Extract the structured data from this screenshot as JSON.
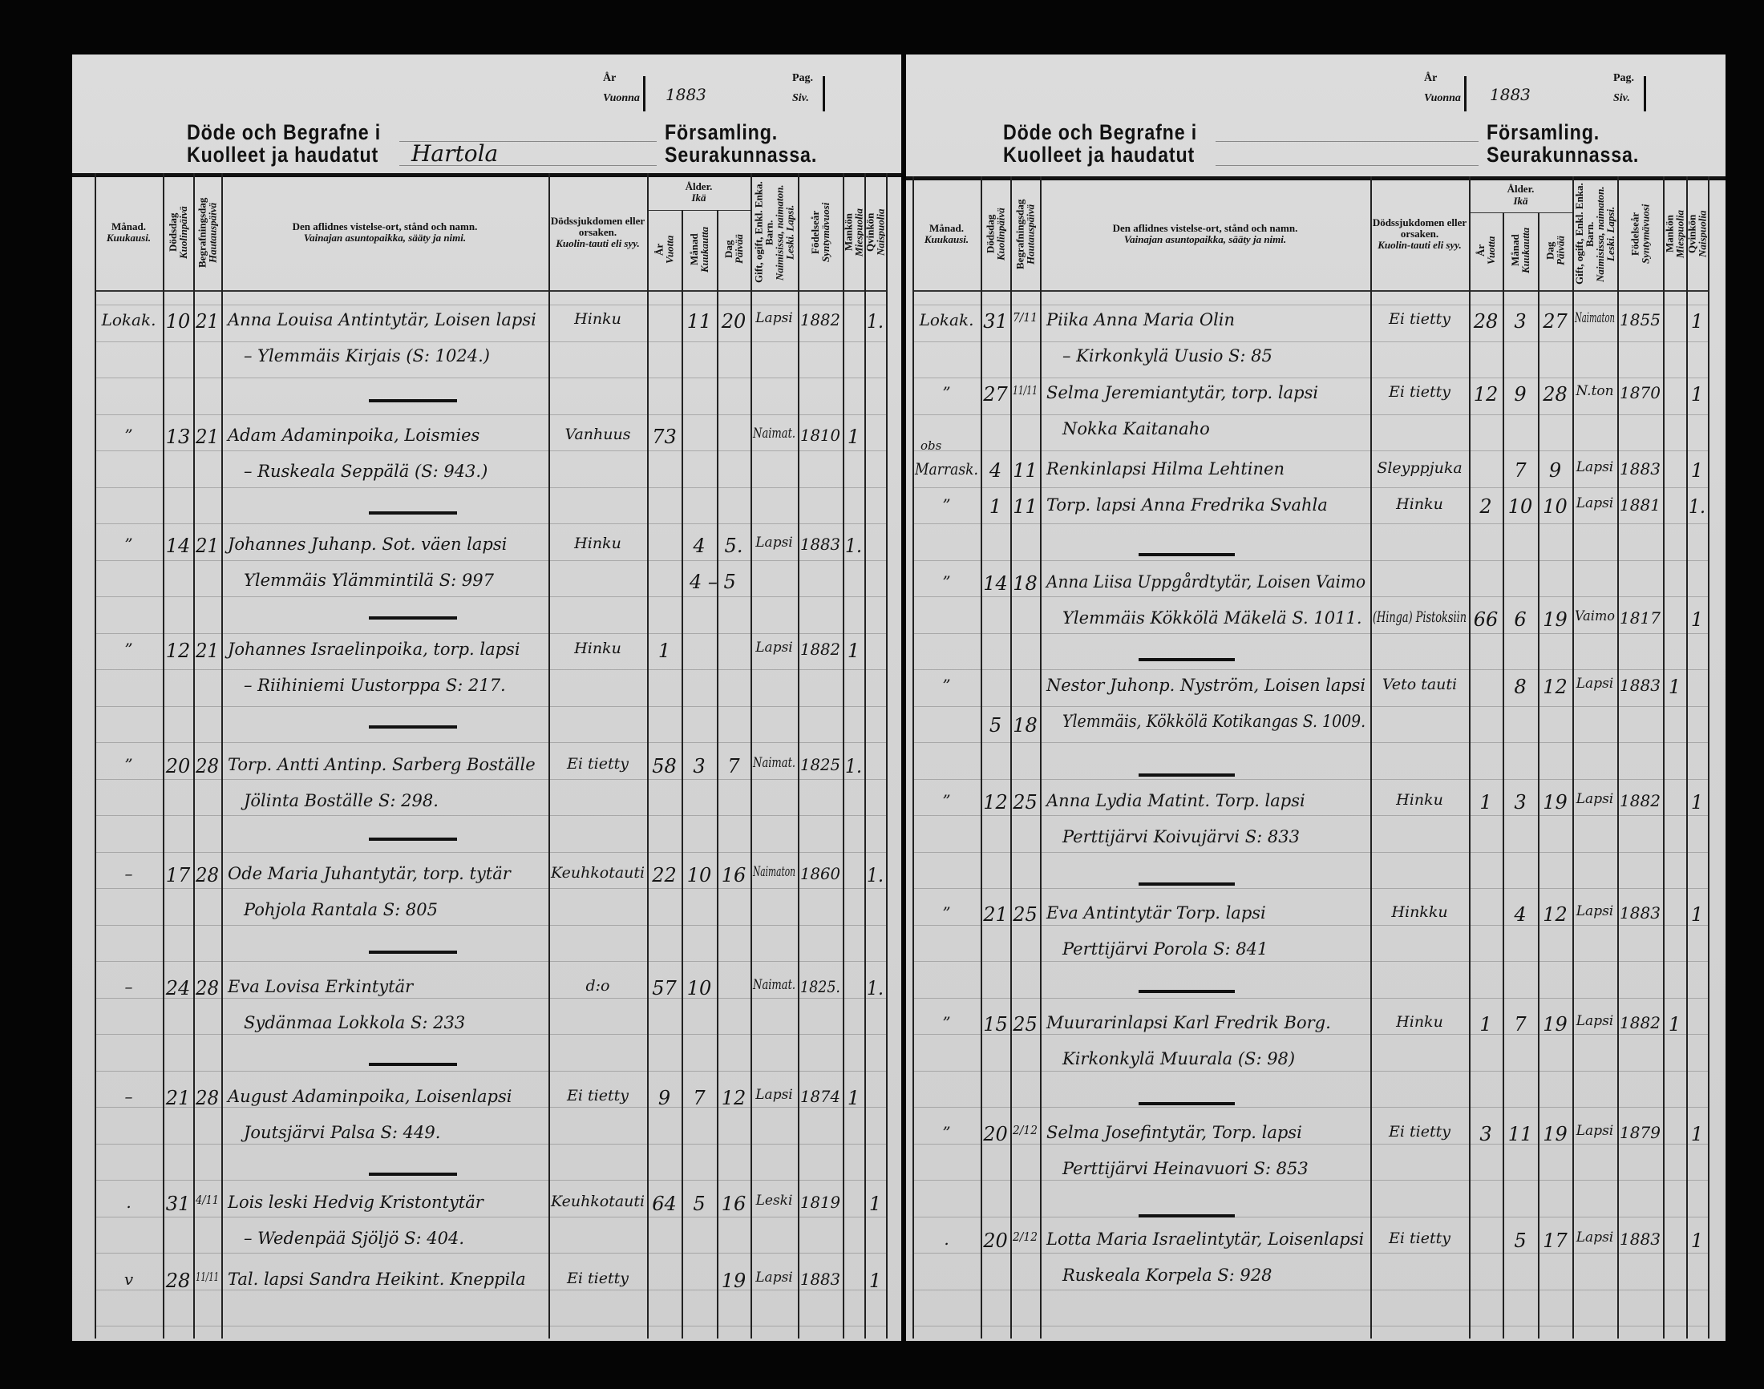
{
  "header": {
    "year_label_sv": "År",
    "year_label_fi": "Vuonna",
    "page_label_sv": "Pag.",
    "page_label_fi": "Siv.",
    "title_sv": "Döde och Begrafne i",
    "title_fi": "Kuolleet ja haudatut",
    "parish_label_sv": "Församling.",
    "parish_label_fi": "Seurakunnassa."
  },
  "columns": {
    "month": {
      "sv": "Månad.",
      "fi": "Kuukausi."
    },
    "death_day": {
      "sv": "Dödsdag",
      "fi": "Kuolinpäivä"
    },
    "burial_day": {
      "sv": "Begrafningsdag",
      "fi": "Hautauspäivä"
    },
    "name": {
      "sv": "Den aflidnes vistelse-ort, stånd och namn.",
      "fi": "Vainajan asuntopaikka, sääty ja nimi."
    },
    "cause": {
      "sv": "Dödssjukdomen eller orsaken.",
      "fi": "Kuolin-tauti eli syy."
    },
    "age": {
      "sv": "Ålder.",
      "fi": "Ikä"
    },
    "years": {
      "sv": "År",
      "fi": "Vuotta"
    },
    "months": {
      "sv": "Månad",
      "fi": "Kuukautta"
    },
    "days": {
      "sv": "Dag",
      "fi": "Päivää"
    },
    "status": {
      "sv": "Gift, ogift, Enkl. Enka. Barn.",
      "fi": "Naimisissa, naimaton. Leski. Lapsi."
    },
    "birth_year": {
      "sv": "Födelseår",
      "fi": "Syntymävuosi"
    },
    "male": {
      "sv": "Mankön",
      "fi": "Miespuolia"
    },
    "female": {
      "sv": "Qvinkön",
      "fi": "Naispuolia"
    }
  },
  "pages": [
    {
      "year": "1883",
      "parish": "Hartola",
      "entries": [
        {
          "month": "Lokak.",
          "death_day": "10",
          "burial_day": "21",
          "name_line1": "Anna Louisa Antintytär, Loisen lapsi",
          "name_line2": "– Ylemmäis Kirjais (S: 1024.)",
          "cause": "Hinku",
          "years": "",
          "months": "11",
          "days": "20",
          "status": "Lapsi",
          "birth_year": "1882",
          "male": "",
          "female": "1."
        },
        {
          "month": "”",
          "death_day": "13",
          "burial_day": "21",
          "name_line1": "Adam Adaminpoika, Loismies",
          "name_line2": "– Ruskeala Seppälä (S: 943.)",
          "cause": "Vanhuus",
          "years": "73",
          "months": "",
          "days": "",
          "status": "Naimat.",
          "birth_year": "1810",
          "male": "1",
          "female": ""
        },
        {
          "month": "”",
          "death_day": "14",
          "burial_day": "21",
          "name_line1": "Johannes Juhanp. Sot. väen lapsi",
          "name_line2": "Ylemmäis Ylämmintilä S: 997",
          "cause": "Hinku",
          "years": "",
          "months": "4",
          "days": "5.",
          "status": "Lapsi",
          "birth_year": "1883",
          "male": "1.",
          "female": "",
          "age_correction": "4 – 5"
        },
        {
          "month": "”",
          "death_day": "12",
          "burial_day": "21",
          "name_line1": "Johannes Israelinpoika, torp. lapsi",
          "name_line2": "– Riihiniemi Uustorppa S: 217.",
          "cause": "Hinku",
          "years": "1",
          "months": "",
          "days": "",
          "status": "Lapsi",
          "birth_year": "1882",
          "male": "1",
          "female": ""
        },
        {
          "month": "”",
          "death_day": "20",
          "burial_day": "28",
          "name_line1": "Torp. Antti Antinp. Sarberg Boställe",
          "name_line2": "Jölinta Boställe S: 298.",
          "cause": "Ei tietty",
          "years": "58",
          "months": "3",
          "days": "7",
          "status": "Naimat.",
          "birth_year": "1825",
          "male": "1.",
          "female": ""
        },
        {
          "month": "–",
          "death_day": "17",
          "burial_day": "28",
          "name_line1": "Ode Maria Juhantytär, torp. tytär",
          "name_line2": "Pohjola Rantala S: 805",
          "cause": "Keuhkotauti",
          "years": "22",
          "months": "10",
          "days": "16",
          "status": "Naimaton",
          "birth_year": "1860",
          "male": "",
          "female": "1."
        },
        {
          "month": "–",
          "death_day": "24",
          "burial_day": "28",
          "name_line1": "Eva Lovisa Erkintytär",
          "name_line2": "Sydänmaa Lokkola S: 233",
          "cause": "d:o",
          "years": "57",
          "months": "10",
          "days": "",
          "status": "Naimat.",
          "birth_year": "1825.",
          "male": "",
          "female": "1."
        },
        {
          "month": "–",
          "death_day": "21",
          "burial_day": "28",
          "name_line1": "August Adaminpoika, Loisenlapsi",
          "name_line2": "Joutsjärvi Palsa S: 449.",
          "cause": "Ei tietty",
          "years": "9",
          "months": "7",
          "days": "12",
          "status": "Lapsi",
          "birth_year": "1874",
          "male": "1",
          "female": ""
        },
        {
          "month": ".",
          "death_day": "31",
          "burial_day": "4/11",
          "name_line1": "Lois leski Hedvig Kristontytär",
          "name_line2": "– Wedenpää Sjöljö S: 404.",
          "cause": "Keuhkotauti",
          "years": "64",
          "months": "5",
          "days": "16",
          "status": "Leski",
          "birth_year": "1819",
          "male": "",
          "female": "1"
        },
        {
          "month": "v",
          "death_day": "28",
          "burial_day": "11/11",
          "name_line1": "Tal. lapsi Sandra Heikint. Kneppila",
          "name_line2": "",
          "cause": "Ei tietty",
          "years": "",
          "months": "",
          "days": "19",
          "status": "Lapsi",
          "birth_year": "1883",
          "male": "",
          "female": "1"
        }
      ]
    },
    {
      "year": "1883",
      "parish": "",
      "entries": [
        {
          "month": "Lokak.",
          "death_day": "31",
          "burial_day": "7/11",
          "name_line1": "Piika Anna Maria Olin",
          "name_line2": "– Kirkonkylä Uusio S: 85",
          "cause": "Ei tietty",
          "years": "28",
          "months": "3",
          "days": "27",
          "status": "Naimaton",
          "birth_year": "1855",
          "male": "",
          "female": "1"
        },
        {
          "month": "”",
          "death_day": "27",
          "burial_day": "11/11",
          "name_line1": "Selma Jeremiantytär, torp. lapsi",
          "name_line2": "Nokka Kaitanaho",
          "cause": "Ei tietty",
          "years": "12",
          "months": "9",
          "days": "28",
          "status": "N.ton",
          "birth_year": "1870",
          "male": "",
          "female": "1"
        },
        {
          "month": "Marrask.",
          "month_note": "obs",
          "death_day": "4",
          "burial_day": "11",
          "name_line1": "Renkinlapsi Hilma Lehtinen",
          "name_line2": "",
          "cause": "Sleyppjuka",
          "years": "",
          "months": "7",
          "days": "9",
          "status": "Lapsi",
          "birth_year": "1883",
          "male": "",
          "female": "1"
        },
        {
          "month": "”",
          "death_day": "1",
          "burial_day": "11",
          "name_line1": "Torp. lapsi Anna Fredrika Svahla",
          "name_line2": "",
          "cause": "Hinku",
          "years": "2",
          "months": "10",
          "days": "10",
          "status": "Lapsi",
          "birth_year": "1881",
          "male": "",
          "female": "1."
        },
        {
          "month": "”",
          "death_day": "14",
          "burial_day": "18",
          "name_line1": "Anna Liisa Uppgårdtytär, Loisen Vaimo",
          "name_line2": "Ylemmäis Kökkölä Mäkelä S. 1011.",
          "cause": "(Hinga) Pistoksiin",
          "years": "66",
          "months": "6",
          "days": "19",
          "status": "Vaimo",
          "birth_year": "1817",
          "male": "",
          "female": "1"
        },
        {
          "month": "”",
          "death_day": "5",
          "burial_day": "18",
          "name_line1": "Nestor Juhonp. Nyström, Loisen lapsi",
          "name_line2": "Ylemmäis, Kökkölä Kotikangas S. 1009.",
          "cause": "Veto tauti",
          "years": "",
          "months": "8",
          "days": "12",
          "status": "Lapsi",
          "birth_year": "1883",
          "male": "1",
          "female": ""
        },
        {
          "month": "”",
          "death_day": "12",
          "burial_day": "25",
          "name_line1": "Anna Lydia Matint. Torp. lapsi",
          "name_line2": "Perttijärvi Koivujärvi S: 833",
          "cause": "Hinku",
          "years": "1",
          "months": "3",
          "days": "19",
          "status": "Lapsi",
          "birth_year": "1882",
          "male": "",
          "female": "1"
        },
        {
          "month": "”",
          "death_day": "21",
          "burial_day": "25",
          "name_line1": "Eva Antintytär Torp. lapsi",
          "name_line2": "Perttijärvi Porola S: 841",
          "cause": "Hinkku",
          "years": "",
          "months": "4",
          "days": "12",
          "status": "Lapsi",
          "birth_year": "1883",
          "male": "",
          "female": "1"
        },
        {
          "month": "”",
          "death_day": "15",
          "burial_day": "25",
          "name_line1": "Muurarinlapsi Karl Fredrik Borg.",
          "name_line2": "Kirkonkylä Muurala (S: 98)",
          "cause": "Hinku",
          "years": "1",
          "months": "7",
          "days": "19",
          "status": "Lapsi",
          "birth_year": "1882",
          "male": "1",
          "female": ""
        },
        {
          "month": "”",
          "death_day": "20",
          "burial_day": "2/12",
          "name_line1": "Selma Josefintytär, Torp. lapsi",
          "name_line2": "Perttijärvi Heinavuori S: 853",
          "cause": "Ei tietty",
          "years": "3",
          "months": "11",
          "days": "19",
          "status": "Lapsi",
          "birth_year": "1879",
          "male": "",
          "female": "1"
        },
        {
          "month": ".",
          "death_day": "20",
          "burial_day": "2/12",
          "name_line1": "Lotta Maria Israelintytär, Loisenlapsi",
          "name_line2": "Ruskeala Korpela S: 928",
          "cause": "Ei tietty",
          "years": "",
          "months": "5",
          "days": "17",
          "status": "Lapsi",
          "birth_year": "1883",
          "male": "",
          "female": "1"
        }
      ]
    }
  ]
}
